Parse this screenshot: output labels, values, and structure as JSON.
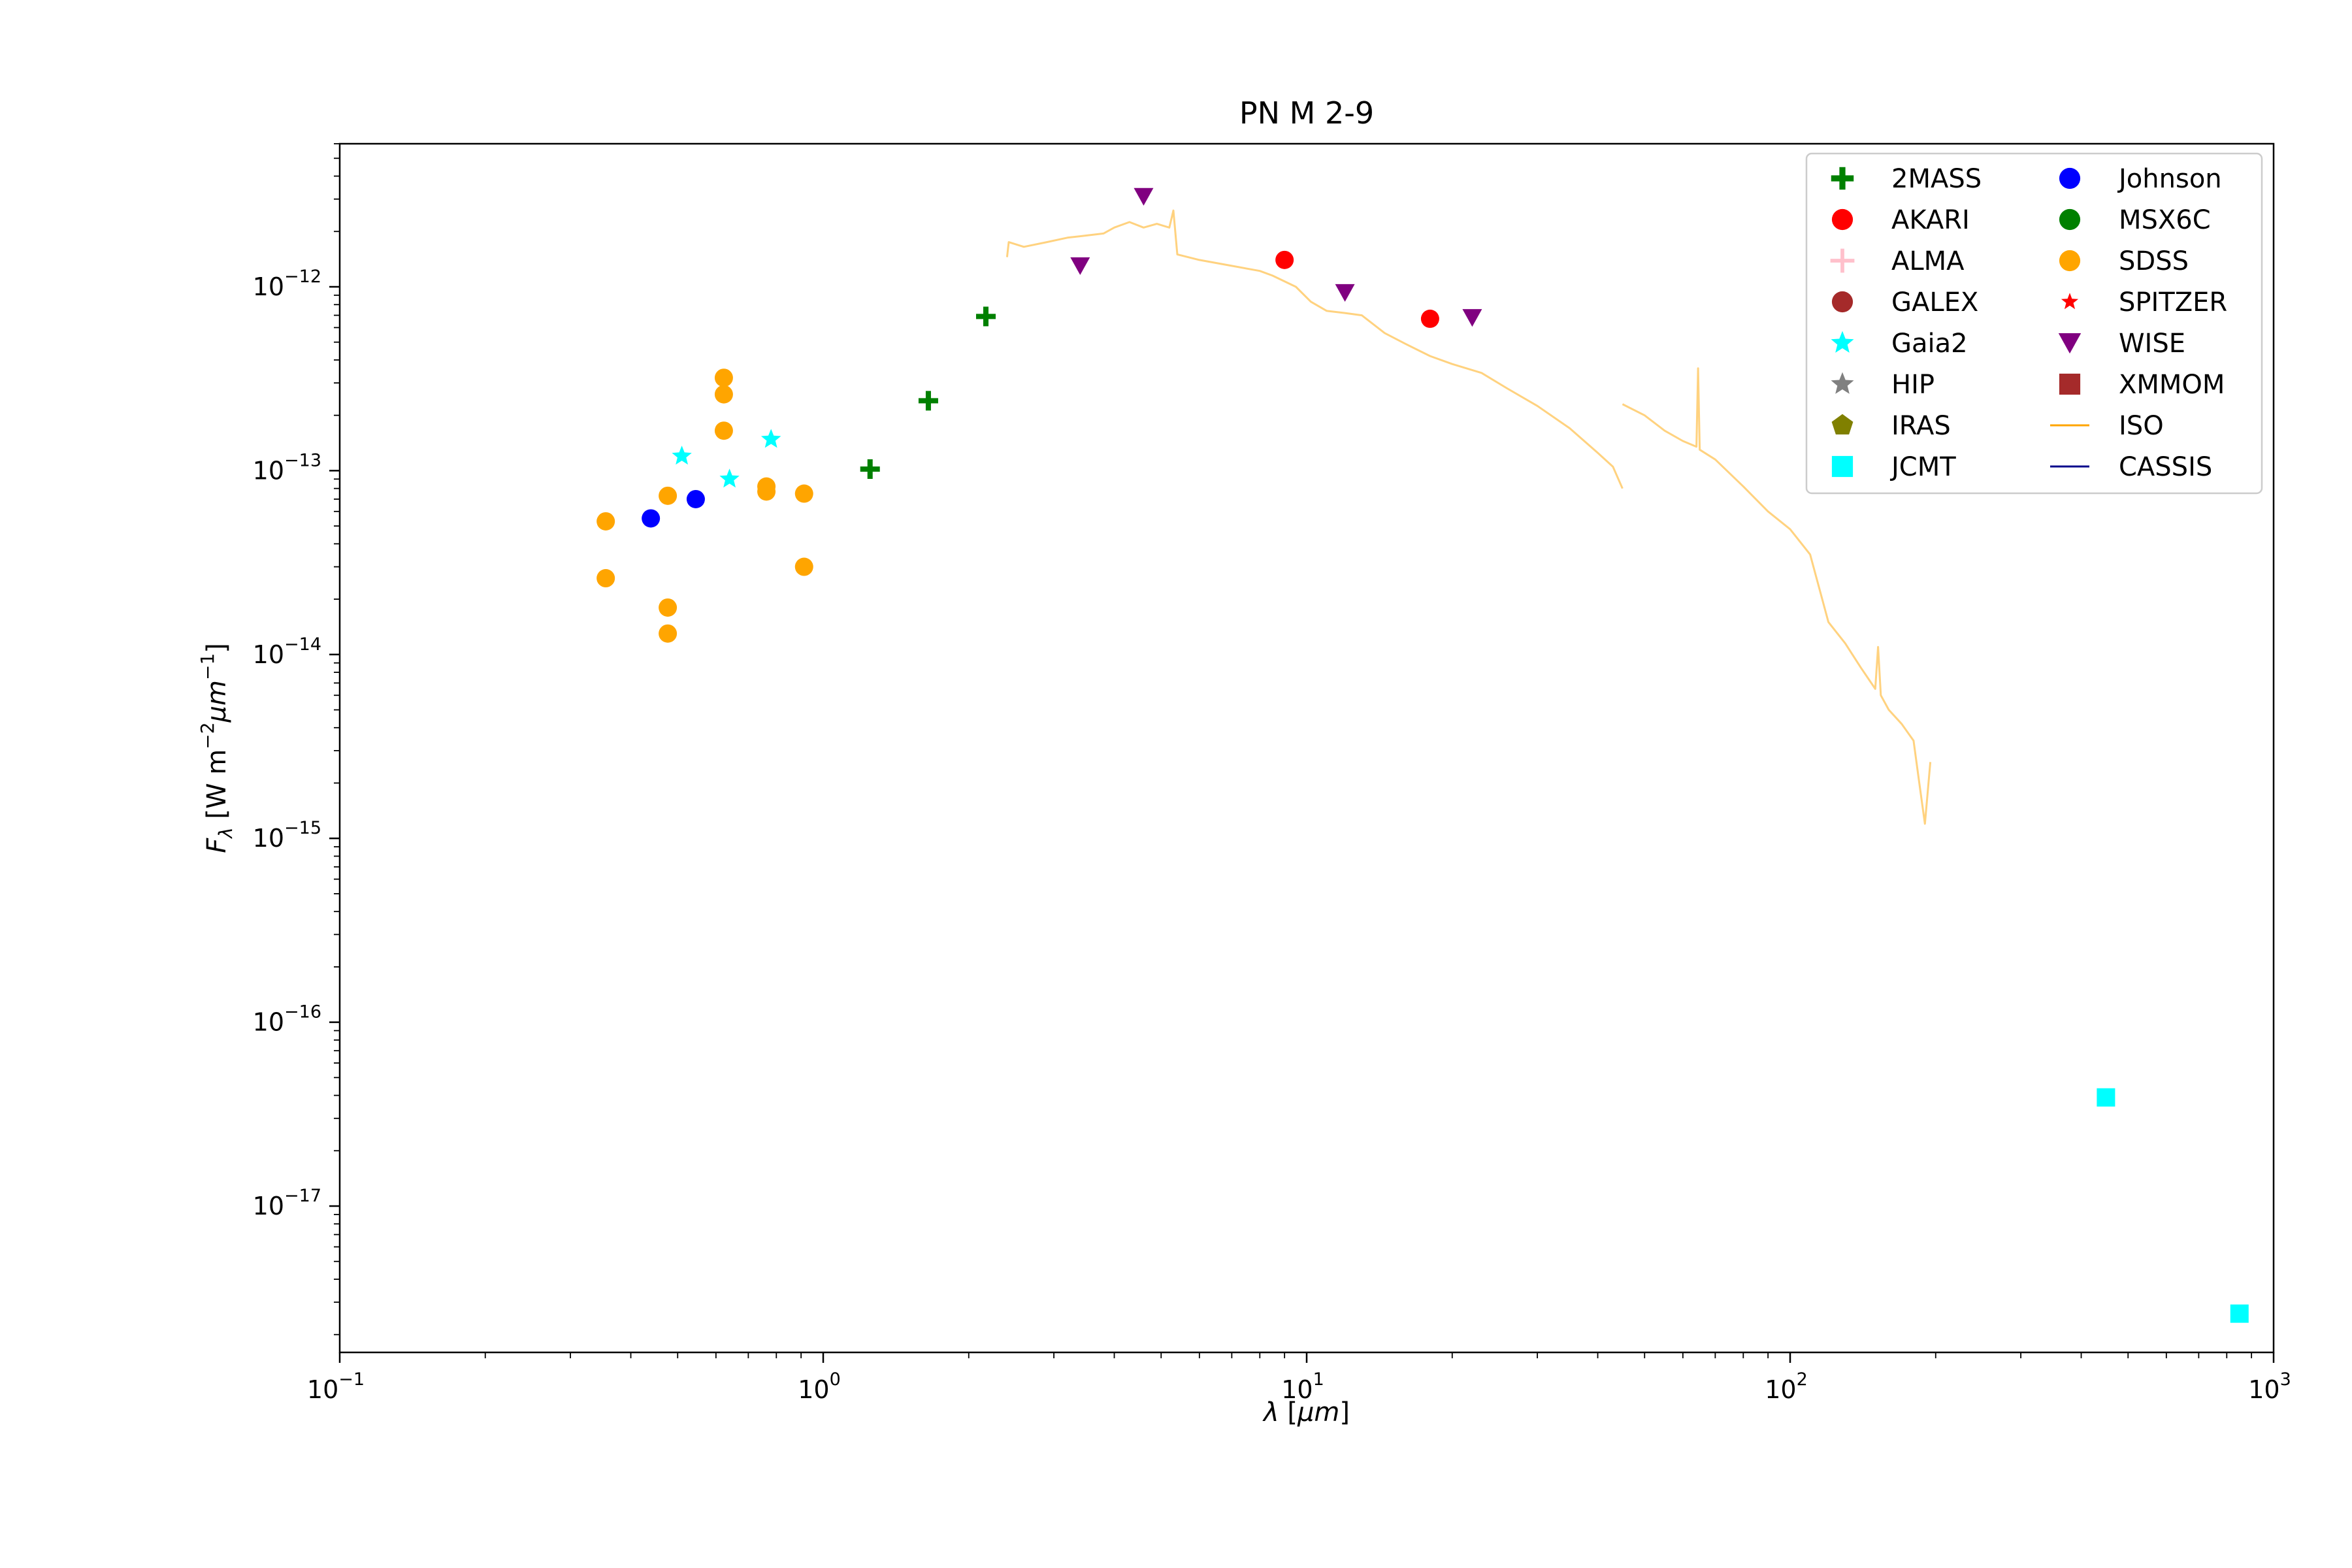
{
  "chart_data": {
    "type": "scatter",
    "title": "PN M 2-9",
    "xlabel": "λ [μm]",
    "ylabel": "F_λ [W m^-2 μm^-1]",
    "xscale": "log",
    "yscale": "log",
    "xlim": [
      0.1,
      1000
    ],
    "ylim": [
      1.6e-18,
      6e-12
    ],
    "x_ticks": [
      {
        "value": 0.1,
        "base": "10",
        "exp": "−1"
      },
      {
        "value": 1,
        "base": "10",
        "exp": "0"
      },
      {
        "value": 10,
        "base": "10",
        "exp": "1"
      },
      {
        "value": 100,
        "base": "10",
        "exp": "2"
      },
      {
        "value": 1000,
        "base": "10",
        "exp": "3"
      }
    ],
    "y_ticks": [
      {
        "value": 1e-17,
        "base": "10",
        "exp": "−17"
      },
      {
        "value": 1e-16,
        "base": "10",
        "exp": "−16"
      },
      {
        "value": 1e-15,
        "base": "10",
        "exp": "−15"
      },
      {
        "value": 1e-14,
        "base": "10",
        "exp": "−14"
      },
      {
        "value": 1e-13,
        "base": "10",
        "exp": "−13"
      },
      {
        "value": 1e-12,
        "base": "10",
        "exp": "−12"
      }
    ],
    "grid": false,
    "legend_position": "top-right",
    "series": [
      {
        "name": "2MASS",
        "marker": "plus",
        "color": "#008000",
        "points": [
          [
            1.25,
            1.02e-13
          ],
          [
            1.65,
            2.4e-13
          ],
          [
            2.17,
            6.9e-13
          ]
        ]
      },
      {
        "name": "AKARI",
        "marker": "circle",
        "color": "#ff0000",
        "points": [
          [
            9.0,
            1.4e-12
          ],
          [
            18.0,
            6.7e-13
          ]
        ]
      },
      {
        "name": "ALMA",
        "marker": "plus-thin",
        "color": "#ffc0cb",
        "points": []
      },
      {
        "name": "GALEX",
        "marker": "circle",
        "color": "#a52a2a",
        "points": []
      },
      {
        "name": "Gaia2",
        "marker": "star",
        "color": "#00ffff",
        "points": [
          [
            0.51,
            1.2e-13
          ],
          [
            0.64,
            9e-14
          ],
          [
            0.78,
            1.48e-13
          ]
        ]
      },
      {
        "name": "HIP",
        "marker": "star",
        "color": "#808080",
        "points": []
      },
      {
        "name": "IRAS",
        "marker": "pentagon",
        "color": "#808000",
        "points": []
      },
      {
        "name": "JCMT",
        "marker": "square",
        "color": "#00ffff",
        "points": [
          [
            450,
            3.9e-17
          ],
          [
            850,
            2.6e-18
          ]
        ]
      },
      {
        "name": "Johnson",
        "marker": "circle",
        "color": "#0000ff",
        "points": [
          [
            0.44,
            5.5e-14
          ],
          [
            0.545,
            7e-14
          ]
        ]
      },
      {
        "name": "MSX6C",
        "marker": "circle",
        "color": "#008000",
        "points": []
      },
      {
        "name": "SDSS",
        "marker": "circle",
        "color": "#ffa500",
        "points": [
          [
            0.355,
            5.3e-14
          ],
          [
            0.355,
            2.6e-14
          ],
          [
            0.477,
            7.3e-14
          ],
          [
            0.477,
            1.8e-14
          ],
          [
            0.477,
            1.3e-14
          ],
          [
            0.623,
            3.2e-13
          ],
          [
            0.623,
            2.6e-13
          ],
          [
            0.623,
            1.65e-13
          ],
          [
            0.763,
            8.2e-14
          ],
          [
            0.763,
            7.7e-14
          ],
          [
            0.913,
            7.5e-14
          ],
          [
            0.913,
            3e-14
          ]
        ]
      },
      {
        "name": "SPITZER",
        "marker": "star-small",
        "color": "#ff0000",
        "points": []
      },
      {
        "name": "WISE",
        "marker": "triangle-down",
        "color": "#800080",
        "points": [
          [
            3.4,
            1.3e-12
          ],
          [
            4.6,
            3.1e-12
          ],
          [
            12.0,
            9.3e-13
          ],
          [
            22.0,
            6.8e-13
          ]
        ]
      },
      {
        "name": "XMMOM",
        "marker": "square",
        "color": "#a52a2a",
        "points": []
      },
      {
        "name": "ISO",
        "marker": "line",
        "color": "#ffa500",
        "segments": [
          [
            [
              2.4,
              1.45e-12
            ],
            [
              2.42,
              1.75e-12
            ],
            [
              2.6,
              1.65e-12
            ],
            [
              2.9,
              1.75e-12
            ],
            [
              3.2,
              1.85e-12
            ],
            [
              3.5,
              1.9e-12
            ],
            [
              3.8,
              1.95e-12
            ],
            [
              4.0,
              2.1e-12
            ],
            [
              4.3,
              2.25e-12
            ],
            [
              4.6,
              2.1e-12
            ],
            [
              4.9,
              2.2e-12
            ],
            [
              5.2,
              2.1e-12
            ],
            [
              5.3,
              2.6e-12
            ],
            [
              5.4,
              1.5e-12
            ],
            [
              6.0,
              1.4e-12
            ],
            [
              7.0,
              1.3e-12
            ],
            [
              8.0,
              1.22e-12
            ],
            [
              8.5,
              1.15e-12
            ],
            [
              9.5,
              1e-12
            ],
            [
              10.2,
              8.3e-13
            ],
            [
              11.0,
              7.4e-13
            ],
            [
              12.0,
              7.2e-13
            ],
            [
              13.0,
              7e-13
            ],
            [
              14.5,
              5.6e-13
            ],
            [
              16.0,
              4.9e-13
            ],
            [
              18.0,
              4.2e-13
            ],
            [
              20.0,
              3.8e-13
            ],
            [
              23.0,
              3.4e-13
            ],
            [
              26.0,
              2.8e-13
            ],
            [
              30.0,
              2.25e-13
            ],
            [
              35.0,
              1.7e-13
            ],
            [
              40.0,
              1.25e-13
            ],
            [
              43.0,
              1.05e-13
            ],
            [
              45.0,
              8e-14
            ]
          ],
          [
            [
              45.0,
              2.3e-13
            ],
            [
              50.0,
              2e-13
            ],
            [
              55.0,
              1.65e-13
            ],
            [
              60.0,
              1.45e-13
            ],
            [
              64.0,
              1.35e-13
            ],
            [
              64.5,
              3.6e-13
            ],
            [
              65.0,
              1.3e-13
            ],
            [
              70.0,
              1.15e-13
            ],
            [
              80.0,
              8.2e-14
            ],
            [
              90.0,
              6e-14
            ],
            [
              100.0,
              4.8e-14
            ],
            [
              110.0,
              3.5e-14
            ],
            [
              120.0,
              1.5e-14
            ],
            [
              130.0,
              1.15e-14
            ],
            [
              140.0,
              8.5e-15
            ],
            [
              150.0,
              6.5e-15
            ],
            [
              152.0,
              1.1e-14
            ],
            [
              154.0,
              6e-15
            ],
            [
              160.0,
              5e-15
            ],
            [
              170.0,
              4.2e-15
            ],
            [
              180.0,
              3.4e-15
            ],
            [
              185.0,
              2e-15
            ],
            [
              190.0,
              1.2e-15
            ],
            [
              195.0,
              2.6e-15
            ]
          ]
        ]
      },
      {
        "name": "CASSIS",
        "marker": "line",
        "color": "#00008b",
        "segments": []
      }
    ]
  }
}
